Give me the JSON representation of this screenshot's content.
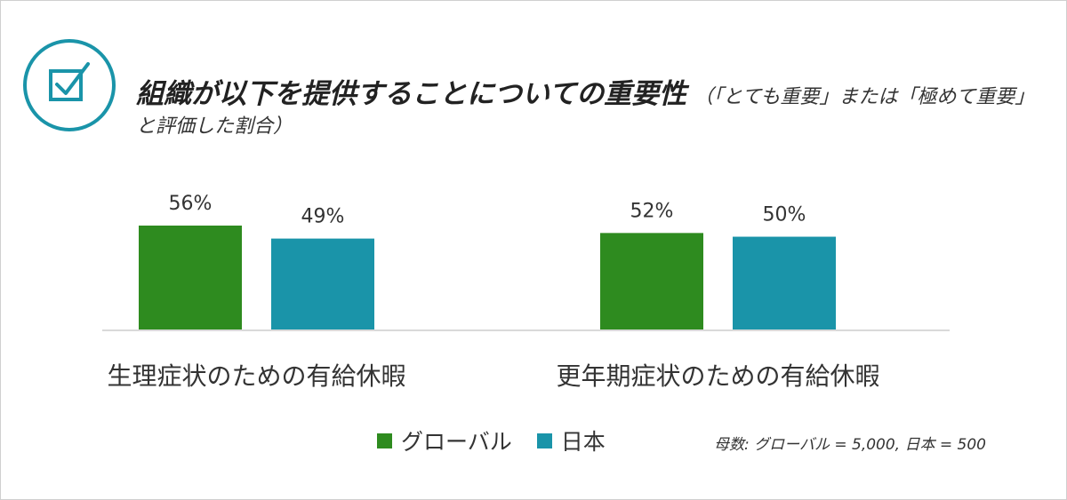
{
  "header": {
    "title": "組織が以下を提供することについての重要性",
    "subtitle_part1": "（「とても重要」または「極めて重要」",
    "subtitle_part2": "と評価した割合）"
  },
  "chart_data": {
    "type": "bar",
    "categories": [
      "生理症状のための有給休暇",
      "更年期症状のための有給休暇"
    ],
    "series": [
      {
        "name": "グローバル",
        "values": [
          56,
          52
        ],
        "color": "#2e8b1f"
      },
      {
        "name": "日本",
        "values": [
          49,
          50
        ],
        "color": "#1a94a9"
      }
    ],
    "value_suffix": "%",
    "ylim": [
      0,
      70
    ],
    "grid": false,
    "legend": "bottom"
  },
  "legend": {
    "items": [
      {
        "label": "グローバル",
        "color": "#2e8b1f"
      },
      {
        "label": "日本",
        "color": "#1a94a9"
      }
    ]
  },
  "note": "母数: グローバル = 5,000, 日本 = 500",
  "icon": {
    "name": "checkbox-check-icon",
    "color": "#1a94a9"
  }
}
